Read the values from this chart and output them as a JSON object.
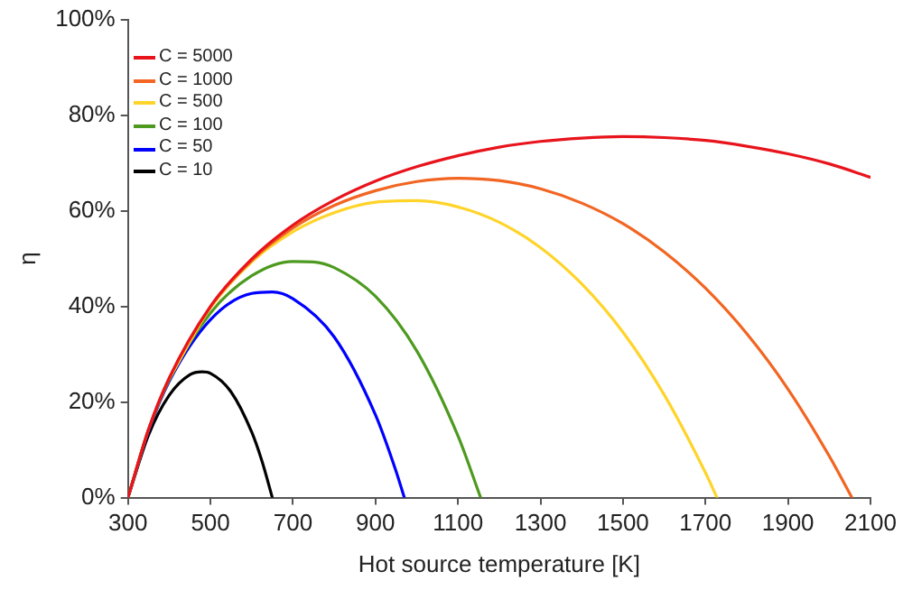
{
  "chart_data": {
    "type": "line",
    "xlabel": "Hot source temperature [K]",
    "ylabel": "η",
    "xlim": [
      300,
      2100
    ],
    "xticks": [
      300,
      500,
      700,
      900,
      1100,
      1300,
      1500,
      1700,
      1900,
      2100
    ],
    "ylim": [
      0,
      100
    ],
    "yticks": [
      {
        "value": 0,
        "label": "0%"
      },
      {
        "value": 20,
        "label": "20%"
      },
      {
        "value": 40,
        "label": "40%"
      },
      {
        "value": 60,
        "label": "60%"
      },
      {
        "value": 80,
        "label": "80%"
      },
      {
        "value": 100,
        "label": "100%"
      }
    ],
    "grid": false,
    "legend": "top left",
    "marker": "none",
    "line_style": "solid",
    "series": [
      {
        "name": "C = 5000",
        "color": "#e8141c",
        "x": [
          300,
          350,
          400,
          500,
          600,
          700,
          800,
          900,
          1000,
          1100,
          1200,
          1300,
          1400,
          1500,
          1600,
          1700,
          1800,
          1900,
          2000,
          2100
        ],
        "values": [
          0,
          14.3,
          25.0,
          40.0,
          49.9,
          57.0,
          62.2,
          66.2,
          69.2,
          71.5,
          73.3,
          74.5,
          75.2,
          75.5,
          75.3,
          74.7,
          73.5,
          71.9,
          69.8,
          67.0
        ]
      },
      {
        "name": "C = 1000",
        "color": "#f26522",
        "x": [
          300,
          350,
          400,
          500,
          600,
          700,
          800,
          900,
          1000,
          1100,
          1200,
          1300,
          1400,
          1500,
          1600,
          1700,
          1800,
          1900,
          2000,
          2055
        ],
        "values": [
          0,
          14.3,
          25.0,
          39.9,
          49.6,
          56.4,
          61.1,
          64.2,
          66.1,
          66.8,
          66.3,
          64.6,
          61.6,
          57.3,
          51.4,
          43.8,
          34.3,
          22.7,
          8.7,
          0
        ]
      },
      {
        "name": "C = 500",
        "color": "#ffd42a",
        "x": [
          400,
          500,
          600,
          700,
          800,
          900,
          1000,
          1100,
          1200,
          1300,
          1400,
          1500,
          1600,
          1700,
          1728
        ],
        "values": [
          24.9,
          39.7,
          49.3,
          55.6,
          59.6,
          61.8,
          62.1,
          60.8,
          57.6,
          52.3,
          44.7,
          34.6,
          21.5,
          5.2,
          0
        ]
      },
      {
        "name": "C = 100",
        "color": "#4d9a1f",
        "x": [
          300,
          350,
          400,
          500,
          600,
          700,
          750,
          800,
          900,
          1000,
          1100,
          1155
        ],
        "values": [
          0,
          14.2,
          24.6,
          38.6,
          46.4,
          49.4,
          49.3,
          48.1,
          42.1,
          30.7,
          12.9,
          0
        ]
      },
      {
        "name": "C = 50",
        "color": "#0000ff",
        "x": [
          300,
          350,
          400,
          500,
          600,
          650,
          700,
          800,
          900,
          950,
          970
        ],
        "values": [
          0,
          14.0,
          24.3,
          37.2,
          42.7,
          43.0,
          41.6,
          33.6,
          17.3,
          5.5,
          0
        ]
      },
      {
        "name": "C = 10",
        "color": "#000000",
        "x": [
          300,
          350,
          400,
          450,
          480,
          500,
          550,
          600,
          625,
          650
        ],
        "values": [
          0,
          13.1,
          21.4,
          25.7,
          26.3,
          26.0,
          22.1,
          13.7,
          7.6,
          0
        ]
      }
    ]
  }
}
